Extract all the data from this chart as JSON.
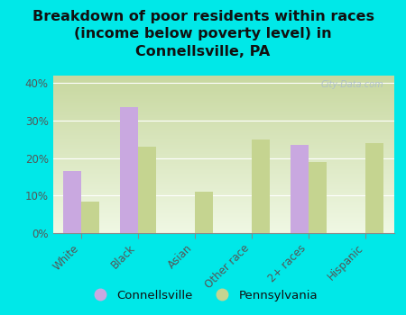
{
  "title": "Breakdown of poor residents within races\n(income below poverty level) in\nConnellsville, PA",
  "categories": [
    "White",
    "Black",
    "Asian",
    "Other race",
    "2+ races",
    "Hispanic"
  ],
  "connellsville": [
    16.5,
    33.5,
    0,
    0,
    23.5,
    0
  ],
  "pennsylvania": [
    8.5,
    23.0,
    11.0,
    25.0,
    19.0,
    24.0
  ],
  "color_connellsville": "#c9a8e0",
  "color_pennsylvania": "#c5d490",
  "background_outer": "#00e8e8",
  "background_plot_top": "#c8d8a0",
  "background_plot_bottom": "#f0f5e0",
  "yticks": [
    0,
    10,
    20,
    30,
    40
  ],
  "ylim": [
    0,
    42
  ],
  "bar_width": 0.32,
  "title_fontsize": 11.5,
  "tick_fontsize": 8.5,
  "legend_fontsize": 9.5,
  "watermark": "City-Data.com"
}
